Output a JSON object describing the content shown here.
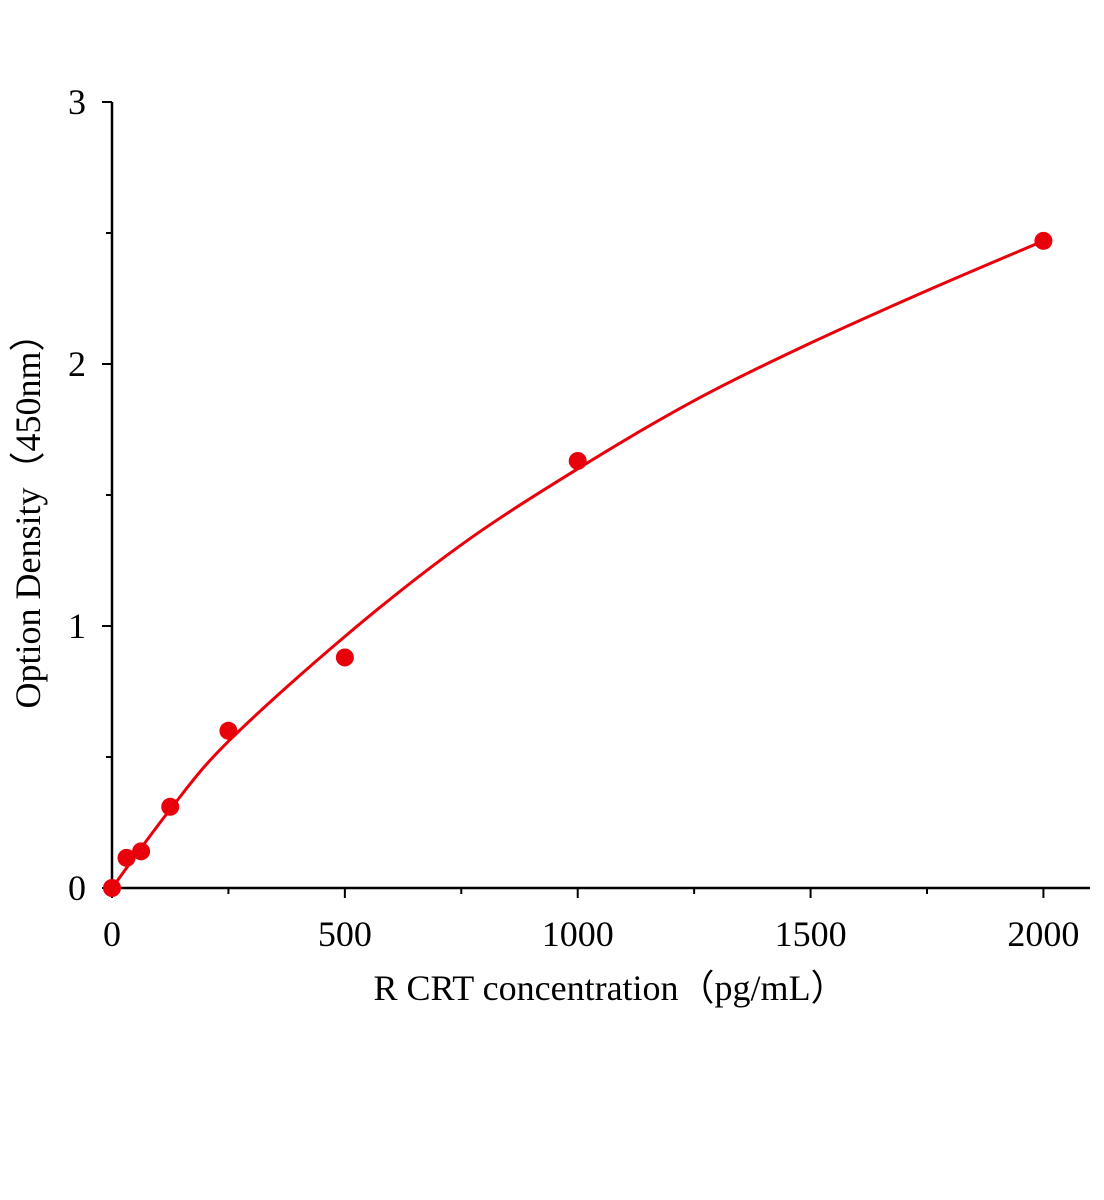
{
  "chart_data": {
    "type": "scatter",
    "x_label": "R CRT concentration（pg/mL）",
    "y_label": "Option Density（450nm）",
    "xlim": [
      0,
      2100
    ],
    "ylim": [
      0,
      3
    ],
    "xticks": [
      0,
      500,
      1000,
      1500,
      2000
    ],
    "xticks_minor": [
      250,
      750,
      1250,
      1750
    ],
    "yticks": [
      0,
      1,
      2,
      3
    ],
    "yticks_minor": [
      0.5,
      1.5,
      2.5
    ],
    "series": [
      {
        "type": "scatter",
        "color": "#e8000b",
        "x": [
          0,
          31.25,
          62.5,
          125,
          250,
          500,
          1000,
          2000
        ],
        "values": [
          0,
          0.115,
          0.14,
          0.31,
          0.6,
          0.88,
          1.63,
          2.47
        ]
      },
      {
        "type": "line",
        "color": "#e8000b",
        "x": [
          0,
          125,
          250,
          500,
          750,
          1000,
          1250,
          1500,
          1750,
          2000
        ],
        "values": [
          0,
          0.3,
          0.56,
          0.96,
          1.31,
          1.6,
          1.86,
          2.08,
          2.28,
          2.47
        ]
      }
    ]
  }
}
